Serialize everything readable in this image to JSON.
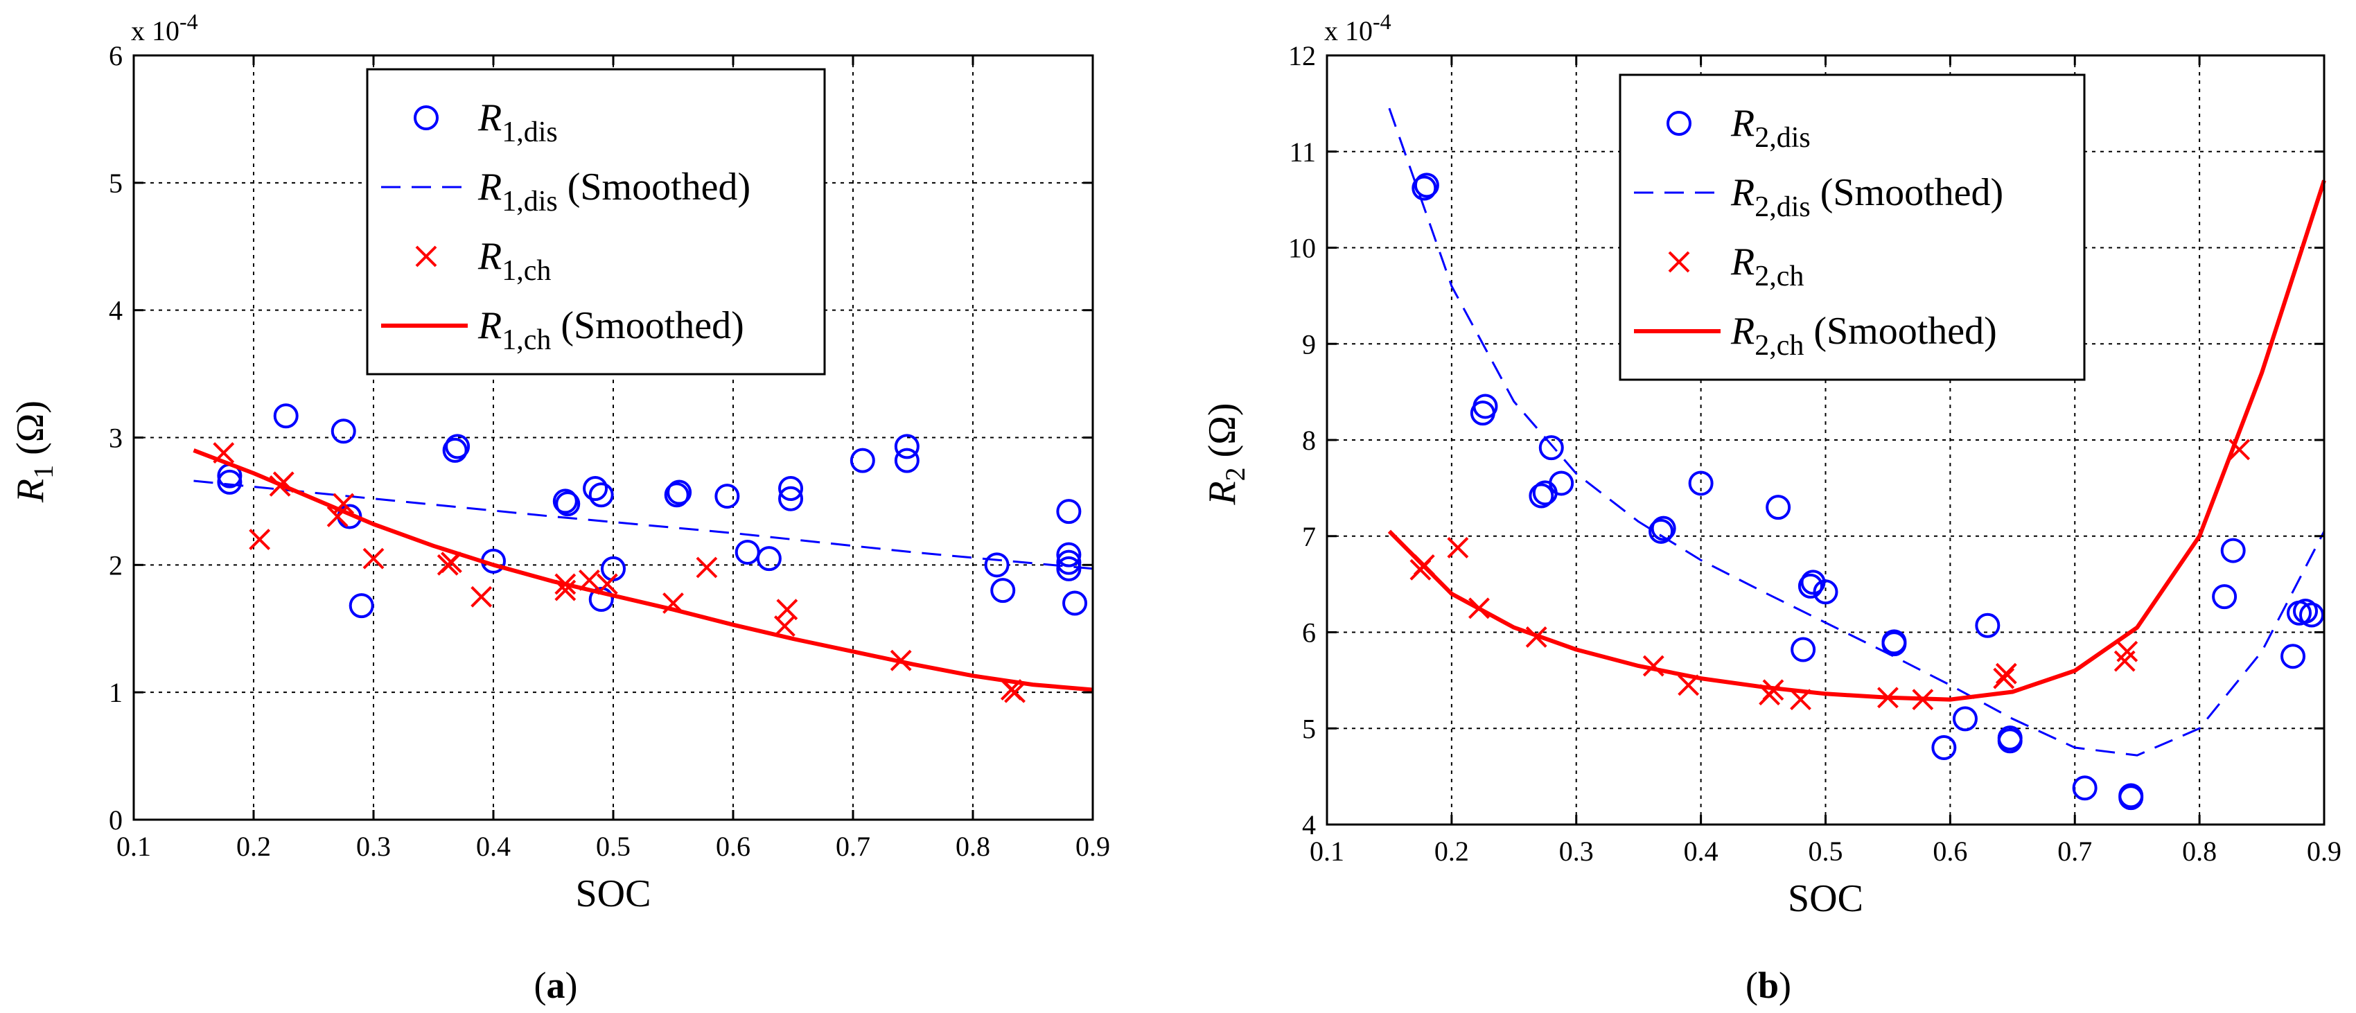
{
  "chart_data": [
    {
      "type": "scatter",
      "panel": "a",
      "caption_pre": "(",
      "caption_letter": "a",
      "caption_post": ")",
      "xlabel": "SOC",
      "ylabel_main": "R",
      "ylabel_sub": "1",
      "ylabel_unit": "(Ω)",
      "exponent_text": "x 10",
      "exponent_power": "-4",
      "xlim": [
        0.1,
        0.9
      ],
      "ylim": [
        0,
        6
      ],
      "xticks": [
        0.1,
        0.2,
        0.3,
        0.4,
        0.5,
        0.6,
        0.7,
        0.8,
        0.9
      ],
      "yticks": [
        0,
        1,
        2,
        3,
        4,
        5,
        6
      ],
      "grid": true,
      "legend_location": "top-center",
      "legend": [
        {
          "main": "R",
          "sub": "1,dis",
          "suffix": ""
        },
        {
          "main": "R",
          "sub": "1,dis",
          "suffix": " (Smoothed)"
        },
        {
          "main": "R",
          "sub": "1,ch",
          "suffix": ""
        },
        {
          "main": "R",
          "sub": "1,ch",
          "suffix": " (Smoothed)"
        }
      ],
      "series": [
        {
          "name": "R1,dis",
          "style": "circle",
          "color": "#0000ff",
          "x": [
            0.18,
            0.18,
            0.227,
            0.275,
            0.28,
            0.29,
            0.368,
            0.37,
            0.4,
            0.46,
            0.462,
            0.485,
            0.49,
            0.49,
            0.5,
            0.553,
            0.555,
            0.595,
            0.612,
            0.63,
            0.648,
            0.648,
            0.708,
            0.745,
            0.745,
            0.82,
            0.825,
            0.88,
            0.88,
            0.88,
            0.88,
            0.885
          ],
          "y": [
            2.65,
            2.7,
            3.17,
            3.05,
            2.38,
            1.68,
            2.9,
            2.93,
            2.03,
            2.5,
            2.48,
            2.6,
            2.55,
            1.73,
            1.97,
            2.55,
            2.57,
            2.54,
            2.1,
            2.05,
            2.52,
            2.6,
            2.82,
            2.93,
            2.82,
            2.0,
            1.8,
            2.42,
            2.08,
            2.02,
            1.97,
            1.7
          ]
        },
        {
          "name": "R1,dis (Smoothed)",
          "style": "dashed",
          "color": "#0000ff",
          "x": [
            0.15,
            0.3,
            0.45,
            0.6,
            0.75,
            0.9
          ],
          "y": [
            2.66,
            2.52,
            2.38,
            2.25,
            2.1,
            1.97
          ]
        },
        {
          "name": "R1,ch",
          "style": "x",
          "color": "#ff0000",
          "x": [
            0.175,
            0.205,
            0.222,
            0.225,
            0.27,
            0.275,
            0.3,
            0.362,
            0.365,
            0.39,
            0.46,
            0.46,
            0.48,
            0.495,
            0.55,
            0.578,
            0.643,
            0.645,
            0.74,
            0.832,
            0.835
          ],
          "y": [
            2.88,
            2.2,
            2.62,
            2.65,
            2.38,
            2.48,
            2.05,
            2.0,
            2.02,
            1.75,
            1.8,
            1.85,
            1.88,
            1.85,
            1.7,
            1.98,
            1.52,
            1.65,
            1.25,
            1.02,
            1.0
          ]
        },
        {
          "name": "R1,ch (Smoothed)",
          "style": "solid",
          "color": "#ff0000",
          "x": [
            0.15,
            0.2,
            0.25,
            0.3,
            0.35,
            0.4,
            0.45,
            0.5,
            0.55,
            0.6,
            0.65,
            0.7,
            0.75,
            0.8,
            0.85,
            0.9
          ],
          "y": [
            2.9,
            2.72,
            2.52,
            2.32,
            2.15,
            2.0,
            1.87,
            1.76,
            1.65,
            1.53,
            1.42,
            1.32,
            1.22,
            1.13,
            1.06,
            1.02
          ]
        }
      ]
    },
    {
      "type": "scatter",
      "panel": "b",
      "caption_pre": "(",
      "caption_letter": "b",
      "caption_post": ")",
      "xlabel": "SOC",
      "ylabel_main": "R",
      "ylabel_sub": "2",
      "ylabel_unit": "(Ω)",
      "exponent_text": "x 10",
      "exponent_power": "-4",
      "xlim": [
        0.1,
        0.9
      ],
      "ylim": [
        4,
        12
      ],
      "xticks": [
        0.1,
        0.2,
        0.3,
        0.4,
        0.5,
        0.6,
        0.7,
        0.8,
        0.9
      ],
      "yticks": [
        4,
        5,
        6,
        7,
        8,
        9,
        10,
        11,
        12
      ],
      "grid": true,
      "legend_location": "top-center",
      "legend": [
        {
          "main": "R",
          "sub": "2,dis",
          "suffix": ""
        },
        {
          "main": "R",
          "sub": "2,dis",
          "suffix": " (Smoothed)"
        },
        {
          "main": "R",
          "sub": "2,ch",
          "suffix": ""
        },
        {
          "main": "R",
          "sub": "2,ch",
          "suffix": " (Smoothed)"
        }
      ],
      "series": [
        {
          "name": "R2,dis",
          "style": "circle",
          "color": "#0000ff",
          "x": [
            0.178,
            0.18,
            0.225,
            0.227,
            0.272,
            0.275,
            0.28,
            0.288,
            0.368,
            0.37,
            0.4,
            0.462,
            0.482,
            0.488,
            0.49,
            0.5,
            0.555,
            0.555,
            0.595,
            0.612,
            0.63,
            0.648,
            0.648,
            0.708,
            0.745,
            0.745,
            0.82,
            0.827,
            0.875,
            0.88,
            0.885,
            0.89
          ],
          "y": [
            10.62,
            10.65,
            8.28,
            8.35,
            7.42,
            7.45,
            7.92,
            7.55,
            7.05,
            7.08,
            7.55,
            7.3,
            5.82,
            6.48,
            6.52,
            6.42,
            5.9,
            5.88,
            4.8,
            5.1,
            6.07,
            4.87,
            4.9,
            4.38,
            4.3,
            4.28,
            6.37,
            6.85,
            5.75,
            6.2,
            6.22,
            6.18
          ]
        },
        {
          "name": "R2,dis (Smoothed)",
          "style": "dashed",
          "color": "#0000ff",
          "x": [
            0.15,
            0.2,
            0.25,
            0.3,
            0.35,
            0.4,
            0.45,
            0.5,
            0.55,
            0.6,
            0.65,
            0.7,
            0.75,
            0.8,
            0.85,
            0.9
          ],
          "y": [
            11.45,
            9.6,
            8.4,
            7.65,
            7.15,
            6.75,
            6.42,
            6.1,
            5.78,
            5.45,
            5.1,
            4.8,
            4.72,
            5.0,
            5.8,
            7.05
          ]
        },
        {
          "name": "R2,ch",
          "style": "x",
          "color": "#ff0000",
          "x": [
            0.175,
            0.178,
            0.205,
            0.222,
            0.268,
            0.362,
            0.39,
            0.455,
            0.458,
            0.48,
            0.55,
            0.578,
            0.643,
            0.645,
            0.74,
            0.742,
            0.832
          ],
          "y": [
            6.65,
            6.7,
            6.88,
            6.25,
            5.95,
            5.65,
            5.45,
            5.35,
            5.4,
            5.3,
            5.32,
            5.3,
            5.52,
            5.57,
            5.7,
            5.8,
            7.9
          ]
        },
        {
          "name": "R2,ch (Smoothed)",
          "style": "solid",
          "color": "#ff0000",
          "x": [
            0.15,
            0.2,
            0.25,
            0.3,
            0.35,
            0.4,
            0.45,
            0.5,
            0.55,
            0.6,
            0.65,
            0.7,
            0.75,
            0.8,
            0.85,
            0.9
          ],
          "y": [
            7.05,
            6.4,
            6.05,
            5.82,
            5.65,
            5.52,
            5.43,
            5.36,
            5.32,
            5.3,
            5.38,
            5.6,
            6.05,
            7.0,
            8.7,
            10.7
          ]
        }
      ]
    }
  ]
}
